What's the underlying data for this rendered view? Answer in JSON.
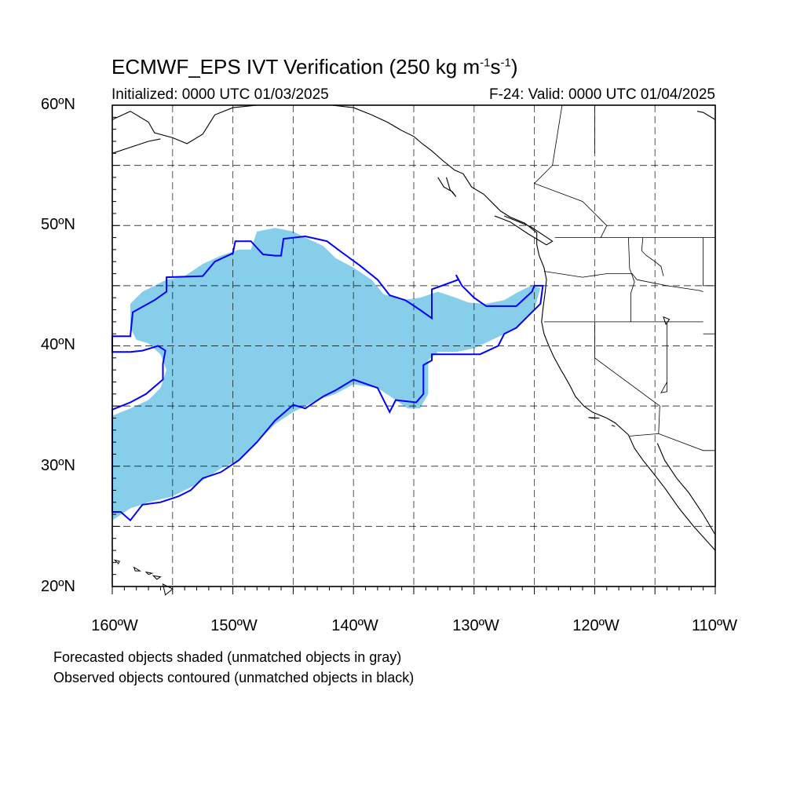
{
  "title": {
    "prefix": "ECMWF_EPS IVT Verification (250 kg m",
    "sup1": "-1",
    "mid": "s",
    "sup2": "-1",
    "suffix": ")"
  },
  "initialized": "Initialized: 0000 UTC 01/03/2025",
  "valid": "F-24: Valid: 0000 UTC 01/04/2025",
  "lat_labels": [
    "60ºN",
    "50ºN",
    "40ºN",
    "30ºN",
    "20ºN"
  ],
  "lon_labels": [
    "160ºW",
    "150ºW",
    "140ºW",
    "130ºW",
    "120ºW",
    "110ºW"
  ],
  "notes": [
    "Forecasted objects shaded (unmatched objects in gray)",
    "Observed objects contoured (unmatched objects in black)"
  ],
  "colors": {
    "forecast_fill": "#87ceeb",
    "observed_contour": "#0000ff",
    "coastline": "#000000"
  },
  "extent": {
    "lon": [
      -160,
      -110
    ],
    "lat": [
      20,
      60
    ]
  },
  "forecast_object": [
    [
      -160,
      34.2
    ],
    [
      -158.5,
      34.8
    ],
    [
      -157,
      35.5
    ],
    [
      -156,
      36.5
    ],
    [
      -155.5,
      38
    ],
    [
      -156,
      39.3
    ],
    [
      -157,
      40.2
    ],
    [
      -158,
      40.5
    ],
    [
      -158.5,
      41.5
    ],
    [
      -158.5,
      43.5
    ],
    [
      -157.5,
      44.5
    ],
    [
      -155.5,
      45.5
    ],
    [
      -154,
      45.8
    ],
    [
      -152.5,
      46.8
    ],
    [
      -151,
      47.5
    ],
    [
      -149.5,
      48
    ],
    [
      -148.5,
      48
    ],
    [
      -148,
      49.5
    ],
    [
      -146.5,
      49.8
    ],
    [
      -145,
      49.5
    ],
    [
      -144,
      49
    ],
    [
      -142.5,
      48.3
    ],
    [
      -141.5,
      47.3
    ],
    [
      -140,
      46.5
    ],
    [
      -138.5,
      45.5
    ],
    [
      -137.5,
      44.3
    ],
    [
      -136,
      43.8
    ],
    [
      -134.5,
      44
    ],
    [
      -133,
      44.5
    ],
    [
      -131.5,
      44
    ],
    [
      -130.5,
      43.6
    ],
    [
      -129,
      43.5
    ],
    [
      -127.5,
      43.8
    ],
    [
      -126.5,
      44.4
    ],
    [
      -125.3,
      45
    ],
    [
      -124.5,
      44.8
    ],
    [
      -125,
      43
    ],
    [
      -126,
      42
    ],
    [
      -127,
      41.2
    ],
    [
      -128.5,
      40.5
    ],
    [
      -130,
      39.8
    ],
    [
      -131.5,
      39.5
    ],
    [
      -133,
      39.5
    ],
    [
      -133.8,
      38.8
    ],
    [
      -133.8,
      36
    ],
    [
      -134.5,
      34.8
    ],
    [
      -135.5,
      34.8
    ],
    [
      -136.5,
      35.5
    ],
    [
      -138,
      36.5
    ],
    [
      -140,
      36.8
    ],
    [
      -141.5,
      36
    ],
    [
      -143,
      35.5
    ],
    [
      -145,
      34.5
    ],
    [
      -146.5,
      33.5
    ],
    [
      -148,
      32
    ],
    [
      -149.5,
      30.5
    ],
    [
      -151,
      29.8
    ],
    [
      -153,
      28.5
    ],
    [
      -155,
      27.5
    ],
    [
      -157,
      27
    ],
    [
      -158.5,
      26.5
    ],
    [
      -160,
      25.5
    ]
  ],
  "observed_contour": [
    [
      -160,
      34.7
    ],
    [
      -158.5,
      35.3
    ],
    [
      -157.2,
      36
    ],
    [
      -155.8,
      37.2
    ],
    [
      -155.8,
      38.5
    ],
    [
      -155.6,
      39.6
    ],
    [
      -156.2,
      40
    ],
    [
      -157.5,
      39.6
    ],
    [
      -158.5,
      39.5
    ],
    [
      -160,
      39.5
    ],
    [
      -160,
      40.8
    ],
    [
      -158.5,
      40.8
    ],
    [
      -158.3,
      42.8
    ],
    [
      -156.5,
      43.8
    ],
    [
      -155.5,
      44.5
    ],
    [
      -155.5,
      45.7
    ],
    [
      -152.5,
      45.8
    ],
    [
      -151.5,
      47
    ],
    [
      -150,
      47.7
    ],
    [
      -149.8,
      48.7
    ],
    [
      -148.5,
      48.7
    ],
    [
      -147.5,
      47.6
    ],
    [
      -146.5,
      47.5
    ],
    [
      -146,
      47.5
    ],
    [
      -145.8,
      48.9
    ],
    [
      -144,
      49.1
    ],
    [
      -142.2,
      48.7
    ],
    [
      -141,
      47.8
    ],
    [
      -139.5,
      46.7
    ],
    [
      -138,
      45.5
    ],
    [
      -137,
      44.2
    ],
    [
      -135.7,
      43.8
    ],
    [
      -134.5,
      43
    ],
    [
      -133.5,
      42.3
    ],
    [
      -133.5,
      44.7
    ],
    [
      -131.3,
      45.5
    ],
    [
      -131.5,
      45.9
    ],
    [
      -131,
      45
    ],
    [
      -130,
      44
    ],
    [
      -129,
      43.3
    ],
    [
      -126.5,
      43.3
    ],
    [
      -125.2,
      44.5
    ],
    [
      -125,
      45
    ],
    [
      -124.3,
      45
    ],
    [
      -124.5,
      43.5
    ],
    [
      -125.5,
      42.5
    ],
    [
      -126.5,
      41.5
    ],
    [
      -127.5,
      41
    ],
    [
      -128,
      40
    ],
    [
      -129.5,
      39.3
    ],
    [
      -133.5,
      39.3
    ],
    [
      -133.5,
      38.8
    ],
    [
      -134.2,
      38.4
    ],
    [
      -134.2,
      36
    ],
    [
      -134.8,
      35.3
    ],
    [
      -136.5,
      35.5
    ],
    [
      -137,
      34.5
    ],
    [
      -138,
      36.5
    ],
    [
      -140,
      37.2
    ],
    [
      -141.5,
      36.3
    ],
    [
      -142.5,
      35.8
    ],
    [
      -144,
      34.8
    ],
    [
      -145,
      35.1
    ],
    [
      -146.5,
      33.8
    ],
    [
      -148,
      32
    ],
    [
      -149.5,
      30.5
    ],
    [
      -151,
      29.5
    ],
    [
      -152.5,
      29
    ],
    [
      -153.5,
      28
    ],
    [
      -154.5,
      27.5
    ],
    [
      -156,
      27
    ],
    [
      -157.5,
      26.8
    ],
    [
      -158.5,
      25.5
    ],
    [
      -159.3,
      26.2
    ],
    [
      -160,
      26.2
    ]
  ],
  "coastlines": [
    [
      [
        -160,
        58.8
      ],
      [
        -158.5,
        59.5
      ],
      [
        -157,
        58.6
      ],
      [
        -156.5,
        57.7
      ],
      [
        -155,
        57.3
      ],
      [
        -153.8,
        56.8
      ],
      [
        -152.5,
        57.6
      ],
      [
        -151.5,
        59.2
      ],
      [
        -150,
        59.8
      ],
      [
        -148,
        60
      ]
    ],
    [
      [
        -160,
        56
      ],
      [
        -158.5,
        56.5
      ],
      [
        -157,
        57
      ],
      [
        -156,
        57.2
      ]
    ],
    [
      [
        -141.8,
        60
      ],
      [
        -140,
        59.8
      ],
      [
        -138.5,
        59.2
      ],
      [
        -137.2,
        58.6
      ],
      [
        -136,
        57.9
      ],
      [
        -135,
        57.4
      ],
      [
        -134.3,
        56.8
      ],
      [
        -133.5,
        56.2
      ],
      [
        -132.6,
        55.4
      ],
      [
        -131.6,
        54.6
      ],
      [
        -130.9,
        54.3
      ],
      [
        -130.2,
        53.2
      ],
      [
        -129.2,
        52.6
      ],
      [
        -128.4,
        51.8
      ],
      [
        -127.8,
        51.2
      ],
      [
        -127,
        50.7
      ],
      [
        -125.8,
        50.2
      ],
      [
        -124.8,
        49.4
      ],
      [
        -124.8,
        48.4
      ],
      [
        -124.6,
        47.5
      ],
      [
        -124.2,
        46.5
      ],
      [
        -124,
        45.5
      ],
      [
        -124.1,
        44.5
      ],
      [
        -124.3,
        43
      ],
      [
        -124.4,
        42
      ],
      [
        -124.2,
        41
      ],
      [
        -123.8,
        40
      ],
      [
        -123.4,
        39.1
      ],
      [
        -122.8,
        38
      ],
      [
        -122.5,
        37.5
      ],
      [
        -122,
        36.6
      ],
      [
        -121.6,
        35.8
      ],
      [
        -120.9,
        35
      ],
      [
        -120.2,
        34.5
      ],
      [
        -119,
        34
      ],
      [
        -118.3,
        33.6
      ],
      [
        -117.2,
        32.6
      ],
      [
        -116.7,
        31.5
      ],
      [
        -116,
        30.5
      ],
      [
        -115.2,
        29.5
      ],
      [
        -114.2,
        28.2
      ],
      [
        -113,
        26.5
      ],
      [
        -111.8,
        25
      ],
      [
        -110,
        23
      ]
    ],
    [
      [
        -133,
        54
      ],
      [
        -132.5,
        53.2
      ],
      [
        -131.8,
        52.8
      ],
      [
        -131.5,
        52.4
      ],
      [
        -132,
        53
      ],
      [
        -132.3,
        54
      ]
    ],
    [
      [
        -128.3,
        50.8
      ],
      [
        -127,
        50.3
      ],
      [
        -125.5,
        49.3
      ],
      [
        -124,
        48.4
      ],
      [
        -123.5,
        48.7
      ],
      [
        -125.3,
        49.9
      ],
      [
        -127.5,
        50.8
      ]
    ],
    [
      [
        -114.8,
        31.9
      ],
      [
        -114.2,
        30.5
      ],
      [
        -113.2,
        29
      ],
      [
        -112.2,
        27.8
      ],
      [
        -111,
        26
      ],
      [
        -110,
        24.3
      ]
    ],
    [
      [
        -110,
        58.8
      ],
      [
        -111,
        59.4
      ],
      [
        -111.5,
        59.5
      ]
    ]
  ],
  "islands": [
    [
      [
        -159.8,
        22.2
      ],
      [
        -159.4,
        22.1
      ],
      [
        -159.5,
        21.9
      ]
    ],
    [
      [
        -158.2,
        21.6
      ],
      [
        -157.7,
        21.3
      ],
      [
        -158.1,
        21.3
      ]
    ],
    [
      [
        -157.2,
        21.2
      ],
      [
        -156.7,
        21.1
      ],
      [
        -157,
        21
      ]
    ],
    [
      [
        -156.6,
        20.9
      ],
      [
        -156,
        20.8
      ],
      [
        -156.3,
        20.6
      ]
    ],
    [
      [
        -155.8,
        20.2
      ],
      [
        -155,
        19.8
      ],
      [
        -155.6,
        19.3
      ]
    ],
    [
      [
        -114.3,
        42.4
      ],
      [
        -113.8,
        42.2
      ],
      [
        -114.1,
        41.8
      ]
    ],
    [
      [
        -120.5,
        34.05
      ],
      [
        -120.2,
        34.0
      ],
      [
        -119.6,
        34.0
      ]
    ],
    [
      [
        -118.6,
        33.4
      ],
      [
        -118.3,
        33.3
      ]
    ]
  ],
  "borders": [
    [
      [
        -123.3,
        49
      ],
      [
        -110,
        49
      ]
    ],
    [
      [
        -124.2,
        46.2
      ],
      [
        -121,
        45.7
      ],
      [
        -119,
        46
      ],
      [
        -116.9,
        46
      ],
      [
        -116.5,
        45.5
      ],
      [
        -114,
        45
      ],
      [
        -111.3,
        44.6
      ],
      [
        -111,
        44.5
      ]
    ],
    [
      [
        -124.2,
        42
      ],
      [
        -111,
        42
      ]
    ],
    [
      [
        -117.2,
        49
      ],
      [
        -117.1,
        46.4
      ],
      [
        -116.9,
        45.9
      ],
      [
        -116.7,
        45.3
      ],
      [
        -117,
        44.4
      ],
      [
        -117,
        42
      ]
    ],
    [
      [
        -120,
        42
      ],
      [
        -120,
        39
      ],
      [
        -114.6,
        35
      ],
      [
        -114.7,
        32.7
      ],
      [
        -111,
        31.3
      ],
      [
        -110,
        31.3
      ]
    ],
    [
      [
        -114,
        42
      ],
      [
        -114,
        37
      ],
      [
        -114.5,
        36.1
      ],
      [
        -114,
        36.2
      ],
      [
        -114,
        37
      ]
    ],
    [
      [
        -117.1,
        32.5
      ],
      [
        -114.7,
        32.7
      ]
    ],
    [
      [
        -111,
        49
      ],
      [
        -111,
        45
      ],
      [
        -110,
        45
      ]
    ],
    [
      [
        -111,
        41
      ],
      [
        -110,
        41
      ]
    ],
    [
      [
        -116,
        49
      ],
      [
        -116.1,
        47.9
      ],
      [
        -115.7,
        47.5
      ],
      [
        -115,
        47
      ],
      [
        -114.5,
        46.6
      ],
      [
        -114.3,
        45.8
      ]
    ],
    [
      [
        -122.7,
        60
      ],
      [
        -123.5,
        55
      ],
      [
        -125,
        53.5
      ],
      [
        -121,
        52
      ],
      [
        -120,
        51
      ],
      [
        -119,
        50
      ],
      [
        -119.5,
        49
      ]
    ],
    [
      [
        -120,
        56
      ],
      [
        -120,
        60
      ]
    ],
    [
      [
        -110,
        56
      ],
      [
        -110,
        60
      ]
    ]
  ]
}
